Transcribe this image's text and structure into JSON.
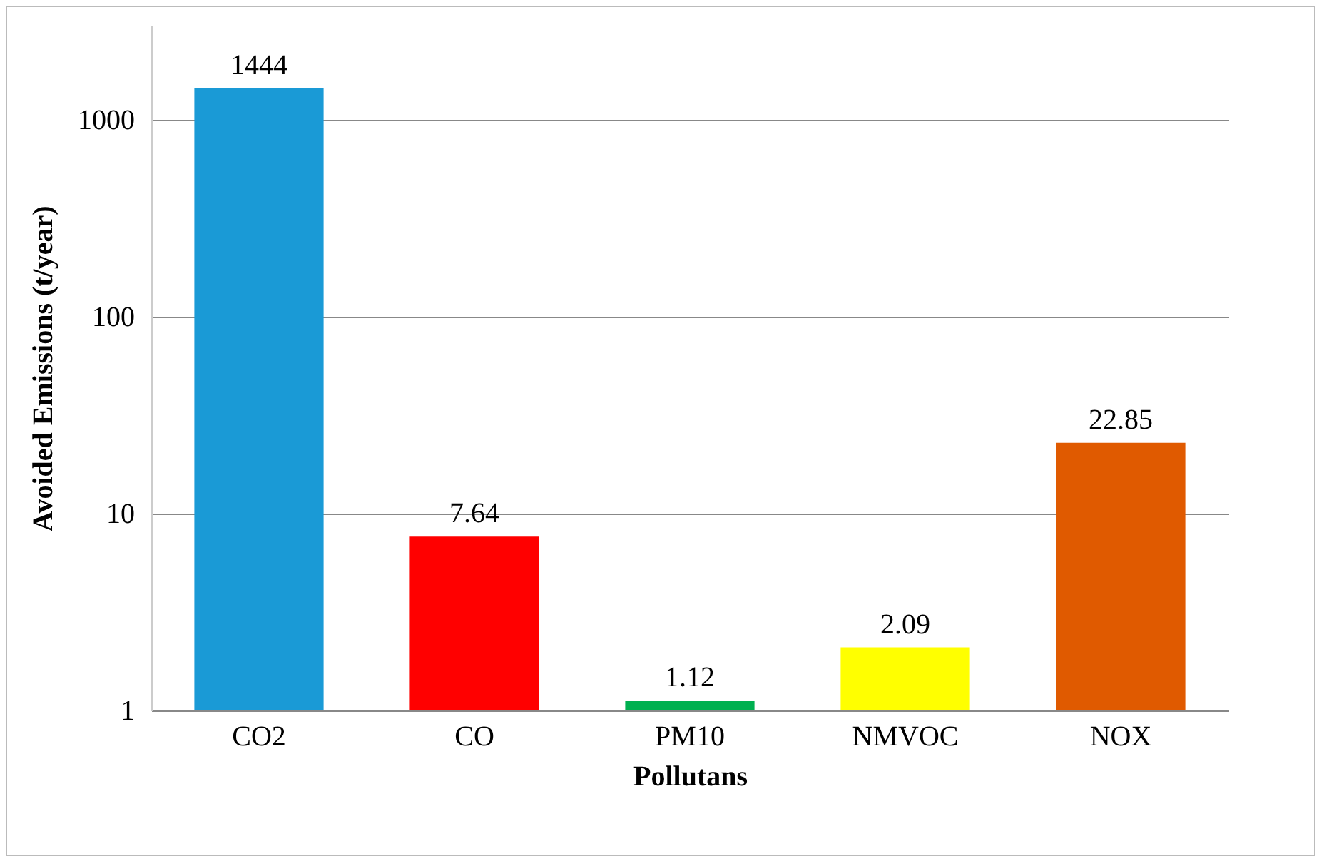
{
  "chart_data": {
    "type": "bar",
    "xlabel": "Pollutans",
    "ylabel": "Avoided Emissions (t/year)",
    "categories": [
      "CO2",
      "CO",
      "PM10",
      "NMVOC",
      "NOX"
    ],
    "values": [
      1444,
      7.64,
      1.12,
      2.09,
      22.85
    ],
    "colors": [
      "#1a9ad6",
      "#ff0000",
      "#00b050",
      "#ffff00",
      "#e05a00"
    ],
    "ylim": [
      1,
      3000
    ],
    "yticks": [
      1,
      10,
      100,
      1000
    ],
    "log": true,
    "grid": "y",
    "data_labels": true
  }
}
